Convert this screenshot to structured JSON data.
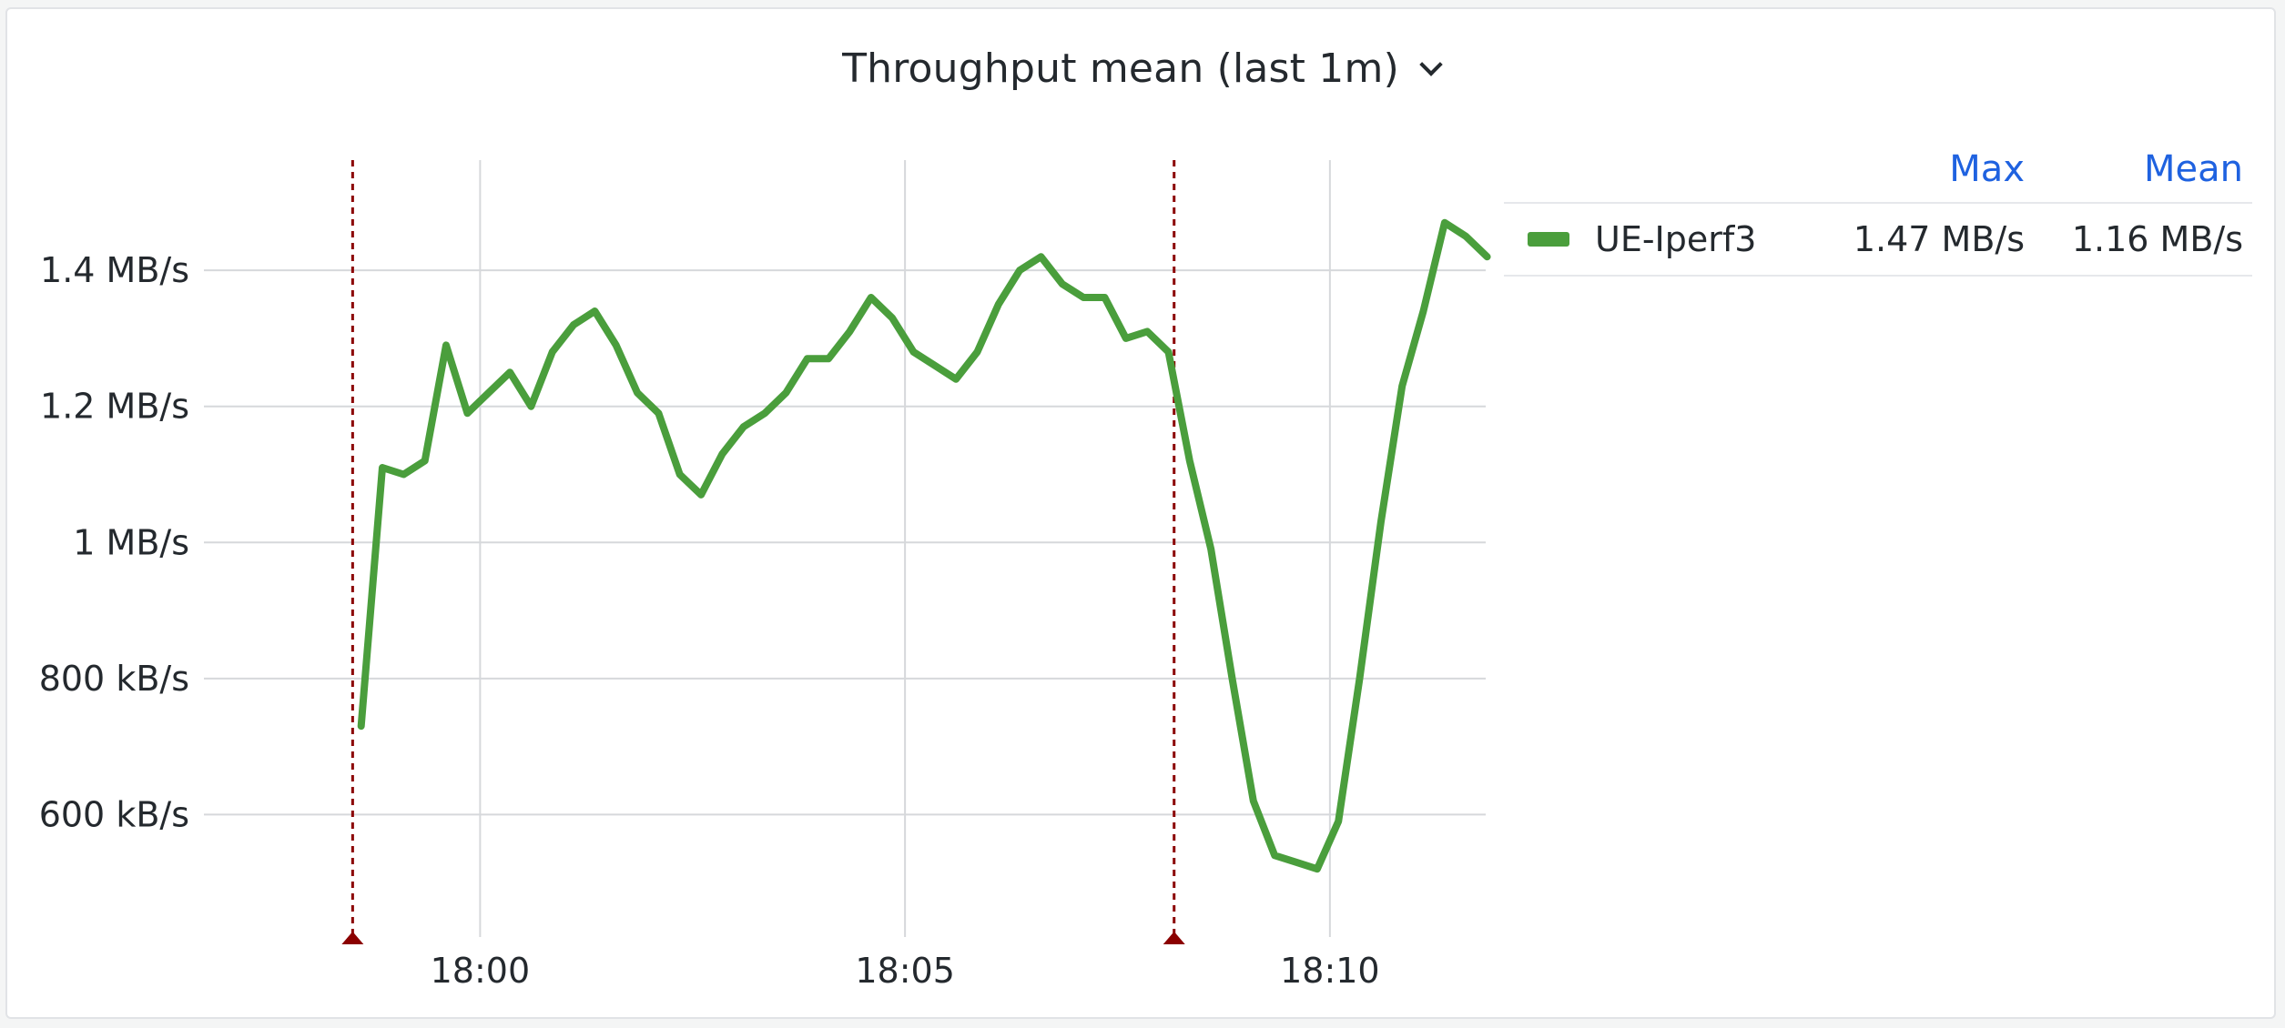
{
  "panel": {
    "title": "Throughput mean (last 1m)",
    "title_icon": "chevron-down-icon"
  },
  "legend": {
    "columns": [
      "Max",
      "Mean"
    ],
    "rows": [
      {
        "name": "UE-Iperf3",
        "max": "1.47 MB/s",
        "mean": "1.16 MB/s",
        "color": "#4a9e3c"
      }
    ]
  },
  "annotation_color": "#8b0000",
  "chart_data": {
    "type": "line",
    "x_label_format": "HH:MM",
    "x_ticks": [
      "18:00",
      "18:05",
      "18:10"
    ],
    "y_ticks": [
      "600 kB/s",
      "800 kB/s",
      "1 MB/s",
      "1.2 MB/s",
      "1.4 MB/s"
    ],
    "y_unit": "MB/s",
    "ylim": [
      0.42,
      1.57
    ],
    "xlim": [
      "17:56:45",
      "18:11:50"
    ],
    "grid": true,
    "legend_position": "right",
    "annotations": [
      "17:58:30",
      "18:08:10"
    ],
    "series": [
      {
        "name": "UE-Iperf3",
        "color": "#4a9e3c",
        "x": [
          "17:58:36",
          "17:58:51",
          "17:59:06",
          "17:59:21",
          "17:59:36",
          "17:59:51",
          "18:00:06",
          "18:00:21",
          "18:00:36",
          "18:00:51",
          "18:01:06",
          "18:01:21",
          "18:01:36",
          "18:01:51",
          "18:02:06",
          "18:02:21",
          "18:02:36",
          "18:02:51",
          "18:03:06",
          "18:03:21",
          "18:03:36",
          "18:03:51",
          "18:04:06",
          "18:04:21",
          "18:04:36",
          "18:04:51",
          "18:05:06",
          "18:05:21",
          "18:05:36",
          "18:05:51",
          "18:06:06",
          "18:06:21",
          "18:06:36",
          "18:06:51",
          "18:07:06",
          "18:07:21",
          "18:07:36",
          "18:07:51",
          "18:08:06",
          "18:08:21",
          "18:08:36",
          "18:08:51",
          "18:09:06",
          "18:09:21",
          "18:09:36",
          "18:09:51",
          "18:10:06",
          "18:10:21",
          "18:10:36",
          "18:10:51",
          "18:11:06",
          "18:11:21",
          "18:11:36",
          "18:11:51"
        ],
        "values": [
          0.73,
          1.11,
          1.1,
          1.12,
          1.29,
          1.19,
          1.22,
          1.25,
          1.2,
          1.28,
          1.32,
          1.34,
          1.29,
          1.22,
          1.19,
          1.1,
          1.07,
          1.13,
          1.17,
          1.19,
          1.22,
          1.27,
          1.27,
          1.31,
          1.36,
          1.33,
          1.28,
          1.26,
          1.24,
          1.28,
          1.35,
          1.4,
          1.42,
          1.38,
          1.36,
          1.36,
          1.3,
          1.31,
          1.28,
          1.12,
          0.99,
          0.8,
          0.62,
          0.54,
          0.53,
          0.52,
          0.59,
          0.8,
          1.03,
          1.23,
          1.34,
          1.47,
          1.45,
          1.42
        ]
      }
    ]
  }
}
